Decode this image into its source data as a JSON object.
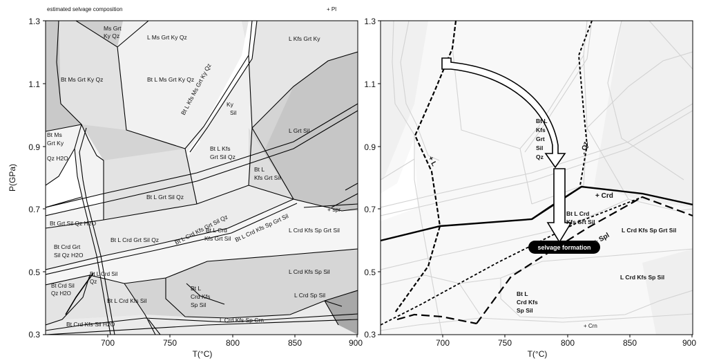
{
  "chart_data": [
    {
      "type": "phase-diagram",
      "title": "estimated selvage composition",
      "corner_label": "+ Pl",
      "xlabel": "T(°C)",
      "ylabel": "P(GPa)",
      "xlim": [
        650,
        900
      ],
      "ylim": [
        0.3,
        1.3
      ],
      "x_ticks": [
        "700",
        "750",
        "800",
        "850",
        "900"
      ],
      "y_ticks": [
        "1.3",
        "1.1",
        "0.9",
        "0.7",
        "0.5",
        "0.3"
      ],
      "field_labels": [
        "Ms Grt",
        "Ky Qz",
        "L Ms Grt Ky Qz",
        "L Kfs Grt Ky",
        "Bt Ms Grt Ky Qz",
        "Bt L Ms Grt Ky Qz",
        "Bt L Kfs Ms Grt Ky Qz",
        "Ky",
        "Sil",
        "L Grt Sil",
        "Bt Ms",
        "Grt Ky",
        "Qz H2O",
        "Bt L Kfs",
        "Grt Sil Qz",
        "Bt L",
        "Kfs Grt Sil",
        "Bt L Grt Sil Qz",
        "+ spr",
        "Bt Grt Sil Qz H2O",
        "Bt L Crd Kfs Grt Sil Qz",
        "Bt L Crd",
        "Kfs Grt Sil",
        "Bt L Crd Kfs Sp Grt Sil",
        "L Crd Kfs Sp Grt Sil",
        "Bt Crd Grt",
        "Sil Qz H2O",
        "Bt L Crd Grt Sil Qz",
        "Bt L Crd Sil",
        "Qz",
        "Bt Crd Sil",
        "L Crd Kfs Sp Sil",
        "Bt L Crd Kfs Sil",
        "Crd Kfs",
        "Sp Sil",
        "L Crd Sp Sil",
        "L Crd Kfs Sp Crn",
        "Bt Crd Kfs Sil H2O"
      ]
    },
    {
      "type": "phase-diagram",
      "xlabel": "T(°C)",
      "xlim": [
        650,
        900
      ],
      "ylim": [
        0.3,
        1.3
      ],
      "x_ticks": [
        "700",
        "750",
        "800",
        "850",
        "900"
      ],
      "y_ticks": [
        "1.3",
        "1.1",
        "0.9",
        "0.7",
        "0.5",
        "0.3"
      ],
      "boundary_labels": [
        "+ L",
        "- Qz",
        "+ Crd",
        "+ Spl"
      ],
      "field_labels": [
        "Bt L",
        "Kfs",
        "Grt",
        "Sil",
        "Qz",
        "Bt L Crd",
        "Kfs Grt Sil",
        "L Crd Kfs Sp Grt Sil",
        "L Crd Kfs Sp Sil",
        "Bt L",
        "Crd Kfs",
        "Sp Sil",
        "+ Crn"
      ],
      "annotation": "selvage formation",
      "path": {
        "from": [
          700,
          1.17
        ],
        "to": [
          795,
          0.56
        ]
      }
    }
  ],
  "colors": {
    "light_field": "#f0f0f0",
    "mid_field": "#d8d8d8",
    "dark_field": "#b4b4b4",
    "line": "#000000",
    "faint_line": "#cfcfcf"
  }
}
